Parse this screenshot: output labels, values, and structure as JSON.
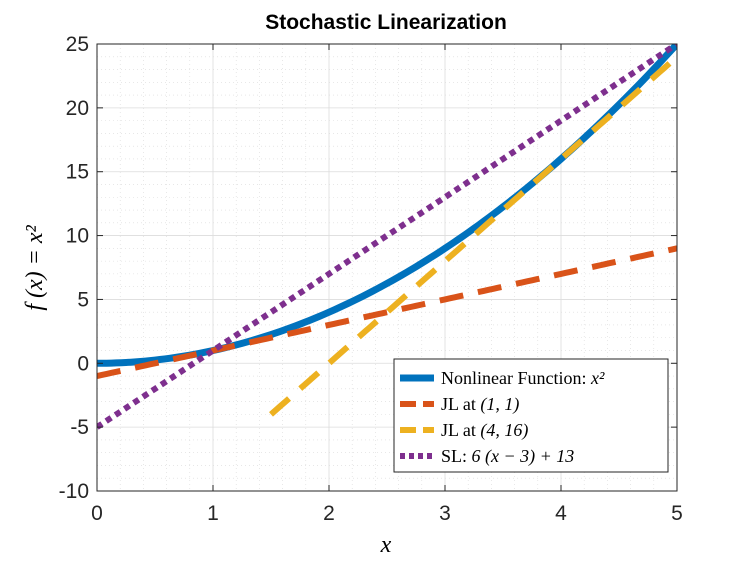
{
  "chart_data": {
    "type": "line",
    "title": "Stochastic Linearization",
    "xlabel": "x",
    "ylabel": "f (x) = x²",
    "xlim": [
      0,
      5
    ],
    "ylim": [
      -10,
      25
    ],
    "xticks": [
      0,
      1,
      2,
      3,
      4,
      5
    ],
    "yticks": [
      -10,
      -5,
      0,
      5,
      10,
      15,
      20,
      25
    ],
    "xtick_labels": [
      "0",
      "1",
      "2",
      "3",
      "4",
      "5"
    ],
    "ytick_labels": [
      "-10",
      "-5",
      "0",
      "5",
      "10",
      "15",
      "20",
      "25"
    ],
    "grid": true,
    "minor_grid": true,
    "legend_position": "bottom-right",
    "series": [
      {
        "name": "Nonlinear Function: x²",
        "label_text": "Nonlinear Function: ",
        "label_math": "x²",
        "color": "#0072BD",
        "style": "solid",
        "formula": "x^2",
        "x_range": [
          0,
          5
        ],
        "points": [
          [
            0,
            0
          ],
          [
            1,
            1
          ],
          [
            2,
            4
          ],
          [
            3,
            9
          ],
          [
            4,
            16
          ],
          [
            5,
            25
          ]
        ]
      },
      {
        "name": "JL at (1, 1)",
        "label_text": "JL at ",
        "label_math": "(1, 1)",
        "color": "#D95319",
        "style": "dashed",
        "formula": "2x - 1",
        "x_range": [
          0,
          5
        ],
        "points": [
          [
            0,
            -1
          ],
          [
            5,
            9
          ]
        ]
      },
      {
        "name": "JL at (4, 16)",
        "label_text": "JL at ",
        "label_math": "(4, 16)",
        "color": "#EDB120",
        "style": "dashed",
        "formula": "8x - 16",
        "x_range": [
          1.5,
          5
        ],
        "points": [
          [
            1.5,
            -4
          ],
          [
            5,
            24
          ]
        ]
      },
      {
        "name": "SL: 6 (x − 3) + 13",
        "label_text": "SL: ",
        "label_math": "6 (x − 3) + 13",
        "color": "#7E2F8E",
        "style": "dotted",
        "formula": "6x - 5",
        "x_range": [
          0,
          5
        ],
        "points": [
          [
            0,
            -5
          ],
          [
            5,
            25
          ]
        ]
      }
    ]
  }
}
